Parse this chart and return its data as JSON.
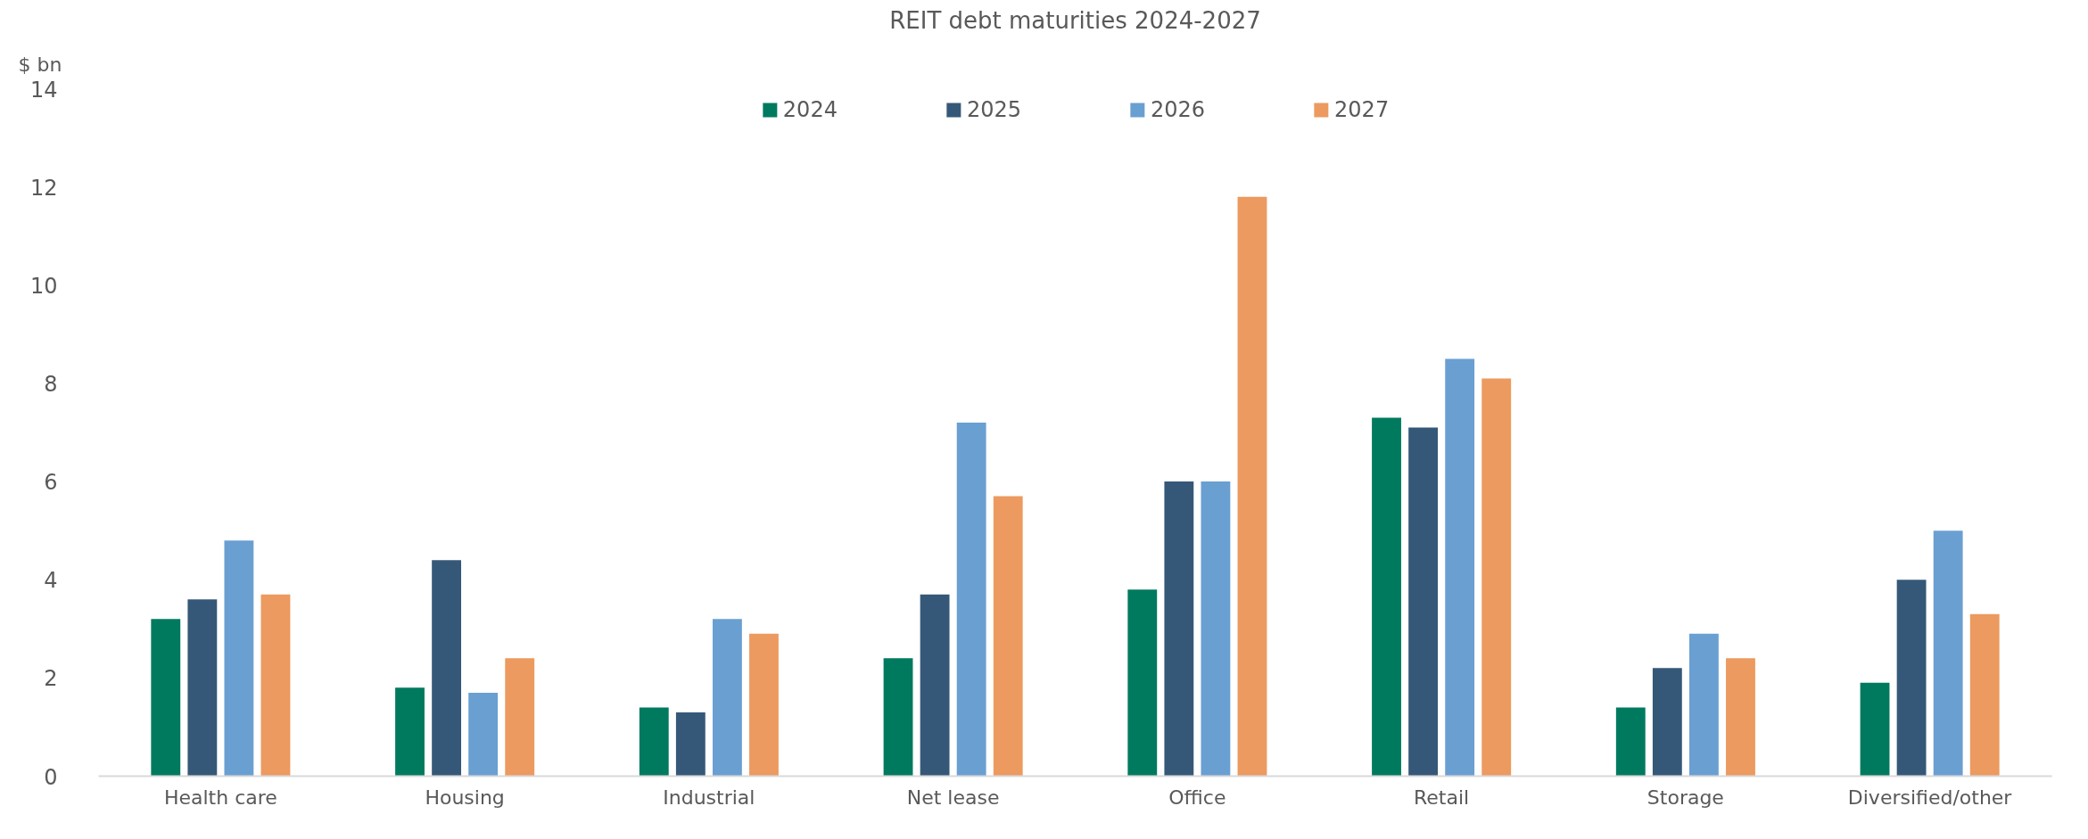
{
  "chart_data": {
    "type": "bar",
    "title": "REIT debt maturities 2024-2027",
    "ylabel": "$ bn",
    "categories": [
      "Health care",
      "Housing",
      "Industrial",
      "Net lease",
      "Office",
      "Retail",
      "Storage",
      "Diversified/other"
    ],
    "series": [
      {
        "name": "2024",
        "color": "#007a5e",
        "values": [
          3.2,
          1.8,
          1.4,
          2.4,
          3.8,
          7.3,
          1.4,
          1.9
        ]
      },
      {
        "name": "2025",
        "color": "#365878",
        "values": [
          3.6,
          4.4,
          1.3,
          3.7,
          6.0,
          7.1,
          2.2,
          4.0
        ]
      },
      {
        "name": "2026",
        "color": "#6a9fd2",
        "values": [
          4.8,
          1.7,
          3.2,
          7.2,
          6.0,
          8.5,
          2.9,
          5.0
        ]
      },
      {
        "name": "2027",
        "color": "#ec9a5f",
        "values": [
          3.7,
          2.4,
          2.9,
          5.7,
          11.8,
          8.1,
          2.4,
          3.3
        ]
      }
    ],
    "ylim": [
      0,
      14
    ],
    "yticks": [
      0,
      2,
      4,
      6,
      8,
      10,
      12,
      14
    ],
    "grid": false,
    "legend": "top"
  }
}
